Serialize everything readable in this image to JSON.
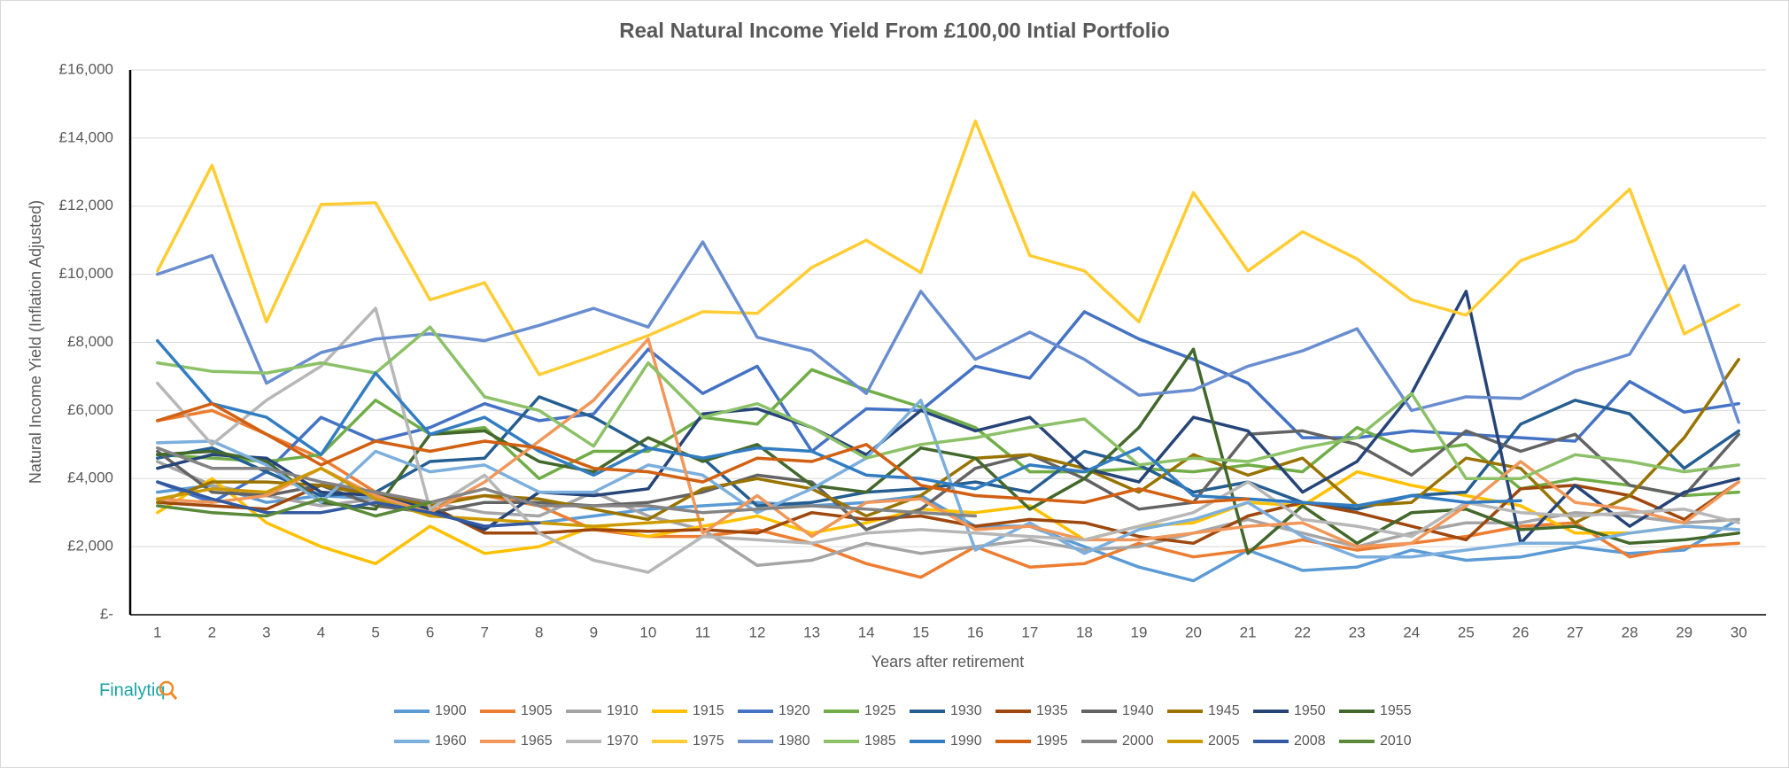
{
  "chart_data": {
    "type": "line",
    "title": "Real Natural Income Yield From £100,00 Intial Portfolio",
    "x_label": "Years after retirement",
    "y_label": "Natural Income Yield (Inflation  Adjusted)",
    "brand": "Finalytiq",
    "grid": true,
    "legend": "bottom",
    "ylim": [
      0,
      16000
    ],
    "yticks": [
      {
        "value": 0,
        "label": "£-"
      },
      {
        "value": 2000,
        "label": "£2,000"
      },
      {
        "value": 4000,
        "label": "£4,000"
      },
      {
        "value": 6000,
        "label": "£6,000"
      },
      {
        "value": 8000,
        "label": "£8,000"
      },
      {
        "value": 10000,
        "label": "£10,000"
      },
      {
        "value": 12000,
        "label": "£12,000"
      },
      {
        "value": 14000,
        "label": "£14,000"
      },
      {
        "value": 16000,
        "label": "£16,000"
      }
    ],
    "categories": [
      "1",
      "2",
      "3",
      "4",
      "5",
      "6",
      "7",
      "8",
      "9",
      "10",
      "11",
      "12",
      "13",
      "14",
      "15",
      "16",
      "17",
      "18",
      "19",
      "20",
      "21",
      "22",
      "23",
      "24",
      "25",
      "26",
      "27",
      "28",
      "29",
      "30"
    ],
    "series": [
      {
        "name": "1900",
        "color": "#5B9BD5",
        "values": [
          3600,
          3800,
          3300,
          3500,
          3400,
          3000,
          2600,
          2700,
          2900,
          3100,
          3200,
          3300,
          3200,
          3300,
          3500,
          2600,
          2600,
          2000,
          1400,
          1000,
          1900,
          1300,
          1400,
          1900,
          1600,
          1700,
          2000,
          1800,
          1900,
          2800
        ]
      },
      {
        "name": "1905",
        "color": "#ED7D31",
        "values": [
          5700,
          6000,
          5300,
          4600,
          3600,
          3300,
          3500,
          3200,
          2500,
          2300,
          2300,
          2500,
          2100,
          1500,
          1100,
          2000,
          1400,
          1500,
          2100,
          1700,
          1900,
          2200,
          1900,
          2100,
          2300,
          2600,
          2700,
          1700,
          2000,
          2100
        ]
      },
      {
        "name": "1910",
        "color": "#A5A5A5",
        "values": [
          4500,
          3800,
          3500,
          3200,
          3400,
          3300,
          3000,
          2900,
          3600,
          2900,
          2500,
          1450,
          1600,
          2100,
          1800,
          2000,
          2200,
          1900,
          2000,
          2400,
          2800,
          2400,
          2000,
          2400,
          2700,
          2700,
          3000,
          2900,
          2700,
          2800
        ]
      },
      {
        "name": "1915",
        "color": "#FFC000",
        "values": [
          3000,
          4000,
          2700,
          2000,
          1500,
          2600,
          1800,
          2000,
          2600,
          2300,
          2600,
          2900,
          2400,
          2700,
          3100,
          3000,
          3200,
          2200,
          2600,
          2700,
          3300,
          3200,
          4200,
          3800,
          3500,
          3200,
          2400,
          2400,
          2600,
          2500
        ]
      },
      {
        "name": "1920",
        "color": "#4472C4",
        "values": [
          3900,
          3300,
          4200,
          5800,
          5100,
          5500,
          6200,
          5700,
          5900,
          7800,
          6500,
          7300,
          4800,
          6050,
          6000,
          7300,
          6950,
          8900,
          8100,
          7500,
          6800,
          5200,
          5200,
          5400,
          5300,
          5200,
          5100,
          6850,
          5950,
          6200
        ]
      },
      {
        "name": "1925",
        "color": "#70AD47",
        "values": [
          4700,
          4600,
          4500,
          4700,
          6300,
          5300,
          5500,
          4000,
          4800,
          4800,
          5800,
          5600,
          7200,
          6600,
          6100,
          5500,
          4200,
          4200,
          4300,
          4200,
          4400,
          4200,
          5500,
          4800,
          5000,
          3700,
          4000,
          3800,
          3500,
          3600
        ]
      },
      {
        "name": "1930",
        "color": "#255E91",
        "values": [
          4600,
          4900,
          4200,
          3500,
          3600,
          4500,
          4600,
          6400,
          5800,
          4900,
          4600,
          3200,
          3300,
          3600,
          3700,
          3900,
          3600,
          4800,
          4400,
          3600,
          3900,
          3300,
          3100,
          3500,
          3600,
          5600,
          6300,
          5900,
          4300,
          5400
        ]
      },
      {
        "name": "1935",
        "color": "#9E480E",
        "values": [
          3300,
          3200,
          3100,
          3800,
          3600,
          3200,
          2400,
          2400,
          2500,
          2450,
          2500,
          2400,
          3000,
          2800,
          2900,
          2600,
          2800,
          2700,
          2300,
          2100,
          2900,
          3300,
          3000,
          2600,
          2200,
          3700,
          3800,
          3500,
          2800,
          3900
        ]
      },
      {
        "name": "1940",
        "color": "#636363",
        "values": [
          4800,
          3600,
          3500,
          3800,
          3200,
          3000,
          3300,
          3300,
          3200,
          3300,
          3600,
          4100,
          3900,
          2500,
          3100,
          4300,
          4700,
          4000,
          3100,
          3300,
          5300,
          5400,
          5000,
          4100,
          5400,
          4800,
          5300,
          3800,
          3500,
          5300
        ]
      },
      {
        "name": "1945",
        "color": "#997300",
        "values": [
          3300,
          3900,
          3900,
          3800,
          3500,
          3200,
          3500,
          3400,
          3100,
          2800,
          3700,
          4000,
          3700,
          2900,
          3500,
          4600,
          4700,
          4300,
          3600,
          4700,
          4100,
          4600,
          3200,
          3300,
          4600,
          4300,
          2700,
          3500,
          5200,
          7500
        ]
      },
      {
        "name": "1950",
        "color": "#264478",
        "values": [
          4300,
          4700,
          4600,
          3600,
          3500,
          3100,
          2500,
          3600,
          3500,
          3700,
          5900,
          6050,
          5500,
          4700,
          6000,
          5400,
          5800,
          4300,
          3900,
          5800,
          5400,
          3600,
          4500,
          6500,
          9500,
          2100,
          3800,
          2600,
          3600,
          4000
        ]
      },
      {
        "name": "1955",
        "color": "#43682B",
        "values": [
          4700,
          4800,
          4500,
          3300,
          3100,
          5300,
          5400,
          4500,
          4200,
          5200,
          4500,
          5000,
          3800,
          3600,
          4900,
          4600,
          3100,
          4000,
          5500,
          7800,
          1800,
          3200,
          2100,
          3000,
          3100,
          2500,
          2600,
          2100,
          2200,
          2400
        ]
      },
      {
        "name": "1960",
        "color": "#7CAFDD",
        "values": [
          5050,
          5100,
          4400,
          3300,
          4800,
          4200,
          4400,
          3600,
          3600,
          4400,
          4100,
          3000,
          3700,
          4600,
          6300,
          1900,
          2700,
          1800,
          2500,
          2800,
          3300,
          2300,
          1700,
          1700,
          1900,
          2100,
          2100,
          2400,
          2600,
          2500
        ]
      },
      {
        "name": "1965",
        "color": "#F1975A",
        "values": [
          3400,
          3300,
          3500,
          4300,
          3500,
          3000,
          3900,
          5100,
          6300,
          8100,
          2400,
          3500,
          2300,
          3300,
          3400,
          2500,
          2600,
          2200,
          2200,
          2400,
          2600,
          2700,
          2000,
          2100,
          3200,
          4500,
          3300,
          3100,
          2700,
          3900
        ]
      },
      {
        "name": "1970",
        "color": "#B7B7B7",
        "values": [
          6800,
          5000,
          6300,
          7300,
          9000,
          3100,
          4100,
          2400,
          1600,
          1250,
          2300,
          2200,
          2100,
          2400,
          2500,
          2400,
          2300,
          2200,
          2600,
          3000,
          3900,
          2800,
          2600,
          2300,
          3300,
          3000,
          2900,
          3000,
          3100,
          2700
        ]
      },
      {
        "name": "1975",
        "color": "#FFCD33",
        "values": [
          10100,
          13200,
          8600,
          12050,
          12100,
          9250,
          9750,
          7050,
          7600,
          8200,
          8900,
          8850,
          10200,
          11000,
          10050,
          14500,
          10550,
          10100,
          8600,
          12400,
          10100,
          11250,
          10450,
          9250,
          8800,
          10400,
          11000,
          12500,
          8250,
          9100
        ]
      },
      {
        "name": "1980",
        "color": "#698ED0",
        "values": [
          10000,
          10550,
          6800,
          7700,
          8100,
          8250,
          8050,
          8500,
          9000,
          8450,
          10950,
          8150,
          7750,
          6500,
          9500,
          7500,
          8300,
          7500,
          6450,
          6600,
          7300,
          7750,
          8400,
          6000,
          6400,
          6350,
          7150,
          7650,
          10250,
          5650
        ]
      },
      {
        "name": "1985",
        "color": "#8CC168",
        "values": [
          7400,
          7150,
          7100,
          7400,
          7100,
          8450,
          6400,
          6000,
          4950,
          7400,
          5800,
          6200,
          5500,
          4600,
          5000,
          5200,
          5500,
          5750,
          4400,
          4600,
          4500,
          4900,
          5200,
          6500,
          4000,
          4000,
          4700,
          4500,
          4200,
          4400
        ]
      },
      {
        "name": "1990",
        "color": "#327DC2",
        "values": [
          8050,
          6200,
          5800,
          4700,
          7100,
          5300,
          5800,
          4800,
          4100,
          4900,
          4600,
          4900,
          4800,
          4100,
          4000,
          3700,
          4400,
          4200,
          4900,
          3500,
          3400,
          3300,
          3200,
          3500,
          3300,
          3350,
          null,
          null,
          null,
          null
        ]
      },
      {
        "name": "1995",
        "color": "#D26012",
        "values": [
          5700,
          6200,
          5300,
          4400,
          5100,
          4800,
          5100,
          4900,
          4300,
          4200,
          3900,
          4600,
          4500,
          5000,
          3800,
          3500,
          3400,
          3300,
          3700,
          3300,
          3400,
          null,
          null,
          null,
          null,
          null,
          null,
          null,
          null,
          null
        ]
      },
      {
        "name": "2000",
        "color": "#848484",
        "values": [
          4900,
          4300,
          4300,
          3900,
          3600,
          3300,
          3700,
          3200,
          3200,
          3200,
          3000,
          3100,
          3200,
          3100,
          3000,
          2900,
          null,
          null,
          null,
          null,
          null,
          null,
          null,
          null,
          null,
          null,
          null,
          null,
          null,
          null
        ]
      },
      {
        "name": "2005",
        "color": "#CC9A00",
        "values": [
          3400,
          3700,
          3600,
          4300,
          3400,
          2900,
          2800,
          2700,
          2600,
          2700,
          2800,
          null,
          null,
          null,
          null,
          null,
          null,
          null,
          null,
          null,
          null,
          null,
          null,
          null,
          null,
          null,
          null,
          null,
          null,
          null
        ]
      },
      {
        "name": "2008",
        "color": "#335AA1",
        "values": [
          3900,
          3400,
          3000,
          3000,
          3300,
          3000,
          2600,
          2700,
          null,
          null,
          null,
          null,
          null,
          null,
          null,
          null,
          null,
          null,
          null,
          null,
          null,
          null,
          null,
          null,
          null,
          null,
          null,
          null,
          null,
          null
        ]
      },
      {
        "name": "2010",
        "color": "#5A8A39",
        "values": [
          3200,
          3000,
          2900,
          3400,
          2900,
          3300,
          null,
          null,
          null,
          null,
          null,
          null,
          null,
          null,
          null,
          null,
          null,
          null,
          null,
          null,
          null,
          null,
          null,
          null,
          null,
          null,
          null,
          null,
          null,
          null
        ]
      }
    ]
  }
}
